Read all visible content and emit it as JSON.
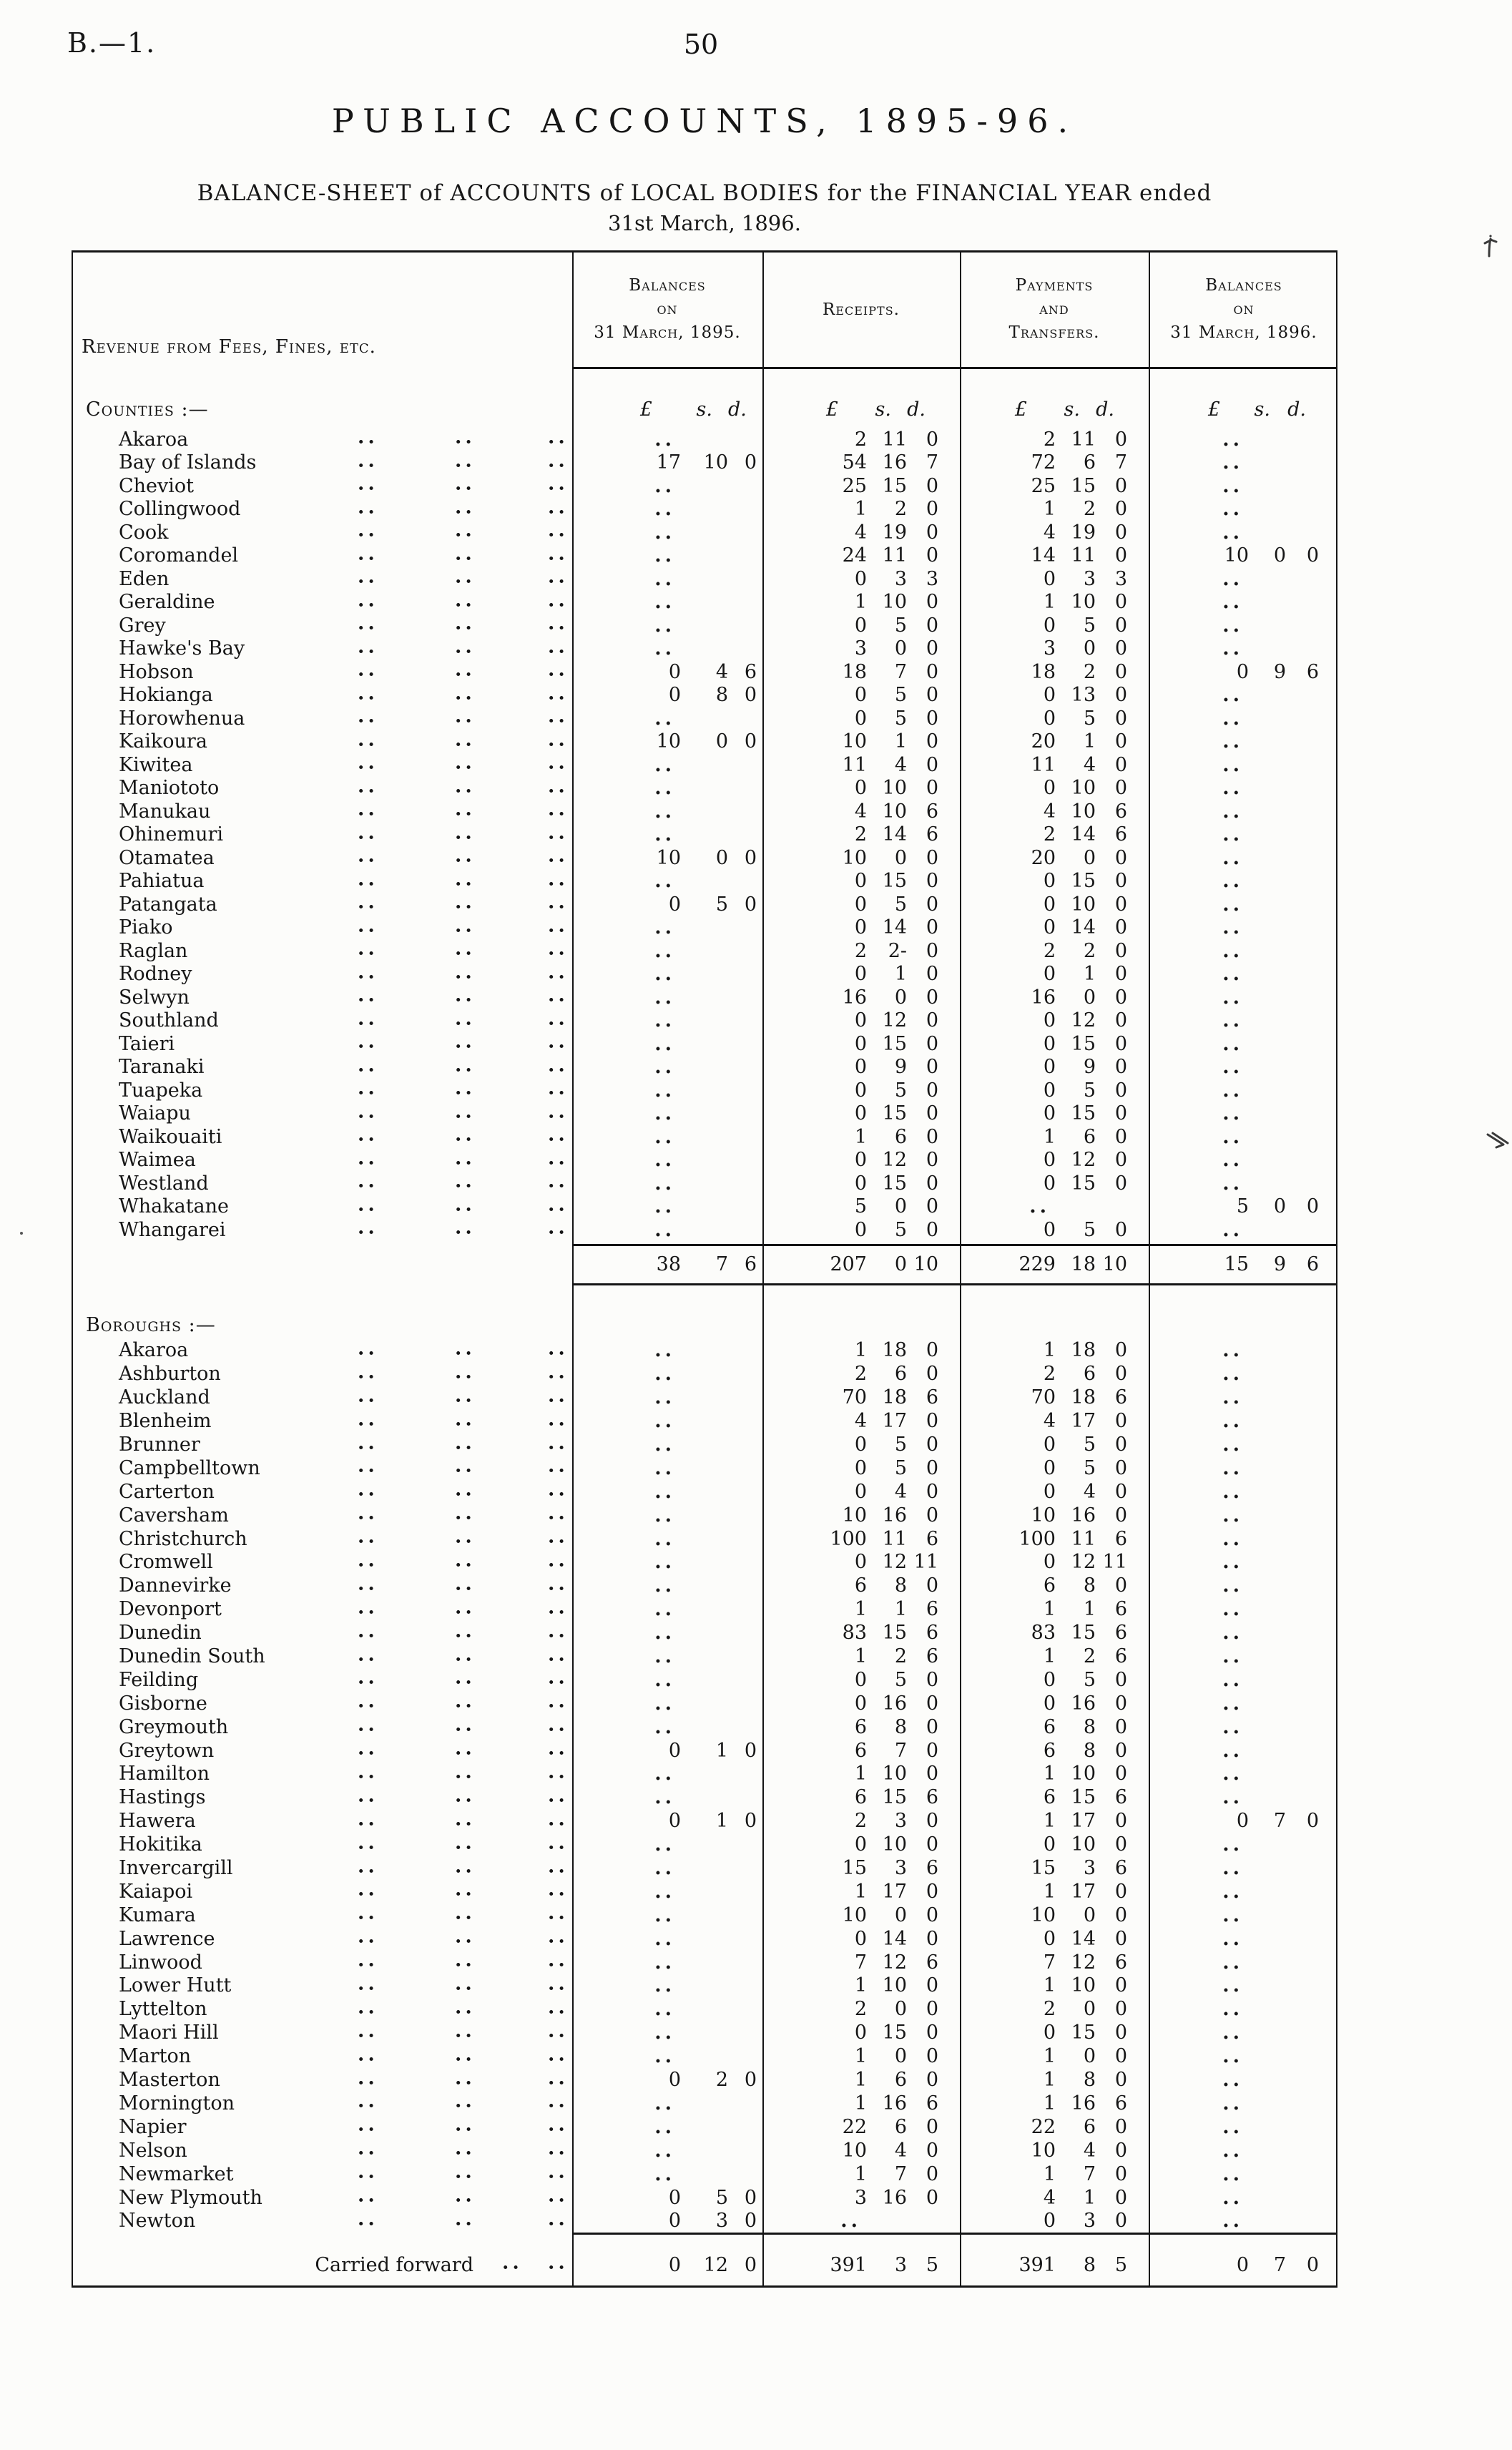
{
  "page": {
    "doc_ref": "B.—1.",
    "page_number": "50",
    "title": "PUBLIC ACCOUNTS, 1895-96.",
    "subtitle": "BALANCE-SHEET of ACCOUNTS of LOCAL BODIES for the FINANCIAL YEAR ended",
    "subtitle2": "31st March, 1896."
  },
  "table": {
    "stub_header": "Revenue from Fees, Fines, etc.",
    "col_headers": [
      {
        "name": "balances-1895",
        "lines": [
          "Balances",
          "on",
          "31 March, 1895."
        ]
      },
      {
        "name": "receipts",
        "lines": [
          "Receipts."
        ]
      },
      {
        "name": "payments-transfers",
        "lines": [
          "Payments",
          "and",
          "Transfers."
        ]
      },
      {
        "name": "balances-1896",
        "lines": [
          "Balances",
          "on",
          "31 March, 1896."
        ]
      }
    ],
    "currency_units": {
      "pounds": "£",
      "shillings": "s.",
      "pence": "d."
    },
    "empty_marker": "..",
    "row_format": [
      "name",
      "balances_1895",
      "receipts",
      "payments_transfers",
      "balances_1896"
    ],
    "sections": [
      {
        "label": "Counties :—",
        "rows": [
          [
            "Akaroa",
            "",
            "2 11 0",
            "2 11 0",
            ""
          ],
          [
            "Bay of Islands",
            "17 10 0",
            "54 16 7",
            "72 6 7",
            ""
          ],
          [
            "Cheviot",
            "",
            "25 15 0",
            "25 15 0",
            ""
          ],
          [
            "Collingwood",
            "",
            "1 2 0",
            "1 2 0",
            ""
          ],
          [
            "Cook",
            "",
            "4 19 0",
            "4 19 0",
            ""
          ],
          [
            "Coromandel",
            "",
            "24 11 0",
            "14 11 0",
            "10 0 0"
          ],
          [
            "Eden",
            "",
            "0 3 3",
            "0 3 3",
            ""
          ],
          [
            "Geraldine",
            "",
            "1 10 0",
            "1 10 0",
            ""
          ],
          [
            "Grey",
            "",
            "0 5 0",
            "0 5 0",
            ""
          ],
          [
            "Hawke's Bay",
            "",
            "3 0 0",
            "3 0 0",
            ""
          ],
          [
            "Hobson",
            "0 4 6",
            "18 7 0",
            "18 2 0",
            "0 9 6"
          ],
          [
            "Hokianga",
            "0 8 0",
            "0 5 0",
            "0 13 0",
            ""
          ],
          [
            "Horowhenua",
            "",
            "0 5 0",
            "0 5 0",
            ""
          ],
          [
            "Kaikoura",
            "10 0 0",
            "10 1 0",
            "20 1 0",
            ""
          ],
          [
            "Kiwitea",
            "",
            "11 4 0",
            "11 4 0",
            ""
          ],
          [
            "Maniototo",
            "",
            "0 10 0",
            "0 10 0",
            ""
          ],
          [
            "Manukau",
            "",
            "4 10 6",
            "4 10 6",
            ""
          ],
          [
            "Ohinemuri",
            "",
            "2 14 6",
            "2 14 6",
            ""
          ],
          [
            "Otamatea",
            "10 0 0",
            "10 0 0",
            "20 0 0",
            ""
          ],
          [
            "Pahiatua",
            "",
            "0 15 0",
            "0 15 0",
            ""
          ],
          [
            "Patangata",
            "0 5 0",
            "0 5 0",
            "0 10 0",
            ""
          ],
          [
            "Piako",
            "",
            "0 14 0",
            "0 14 0",
            ""
          ],
          [
            "Raglan",
            "",
            "2 2- 0",
            "2 2 0",
            ""
          ],
          [
            "Rodney",
            "",
            "0 1 0",
            "0 1 0",
            ""
          ],
          [
            "Selwyn",
            "",
            "16 0 0",
            "16 0 0",
            ""
          ],
          [
            "Southland",
            "",
            "0 12 0",
            "0 12 0",
            ""
          ],
          [
            "Taieri",
            "",
            "0 15 0",
            "0 15 0",
            ""
          ],
          [
            "Taranaki",
            "",
            "0 9 0",
            "0 9 0",
            ""
          ],
          [
            "Tuapeka",
            "",
            "0 5 0",
            "0 5 0",
            ""
          ],
          [
            "Waiapu",
            "",
            "0 15 0",
            "0 15 0",
            ""
          ],
          [
            "Waikouaiti",
            "",
            "1 6 0",
            "1 6 0",
            ""
          ],
          [
            "Waimea",
            "",
            "0 12 0",
            "0 12 0",
            ""
          ],
          [
            "Westland",
            "",
            "0 15 0",
            "0 15 0",
            ""
          ],
          [
            "Whakatane",
            "",
            "5 0 0",
            "",
            "5 0 0"
          ],
          [
            "Whangarei",
            "",
            "0 5 0",
            "0 5 0",
            ""
          ]
        ],
        "totals": [
          "38 7 6",
          "207 0 10",
          "229 18 10",
          "15 9 6"
        ]
      },
      {
        "label": "Boroughs :—",
        "rows": [
          [
            "Akaroa",
            "",
            "1 18 0",
            "1 18 0",
            ""
          ],
          [
            "Ashburton",
            "",
            "2 6 0",
            "2 6 0",
            ""
          ],
          [
            "Auckland",
            "",
            "70 18 6",
            "70 18 6",
            ""
          ],
          [
            "Blenheim",
            "",
            "4 17 0",
            "4 17 0",
            ""
          ],
          [
            "Brunner",
            "",
            "0 5 0",
            "0 5 0",
            ""
          ],
          [
            "Campbelltown",
            "",
            "0 5 0",
            "0 5 0",
            ""
          ],
          [
            "Carterton",
            "",
            "0 4 0",
            "0 4 0",
            ""
          ],
          [
            "Caversham",
            "",
            "10 16 0",
            "10 16 0",
            ""
          ],
          [
            "Christchurch",
            "",
            "100 11 6",
            "100 11 6",
            ""
          ],
          [
            "Cromwell",
            "",
            "0 12 11",
            "0 12 11",
            ""
          ],
          [
            "Dannevirke",
            "",
            "6 8 0",
            "6 8 0",
            ""
          ],
          [
            "Devonport",
            "",
            "1 1 6",
            "1 1 6",
            ""
          ],
          [
            "Dunedin",
            "",
            "83 15 6",
            "83 15 6",
            ""
          ],
          [
            "Dunedin South",
            "",
            "1 2 6",
            "1 2 6",
            ""
          ],
          [
            "Feilding",
            "",
            "0 5 0",
            "0 5 0",
            ""
          ],
          [
            "Gisborne",
            "",
            "0 16 0",
            "0 16 0",
            ""
          ],
          [
            "Greymouth",
            "",
            "6 8 0",
            "6 8 0",
            ""
          ],
          [
            "Greytown",
            "0 1 0",
            "6 7 0",
            "6 8 0",
            ""
          ],
          [
            "Hamilton",
            "",
            "1 10 0",
            "1 10 0",
            ""
          ],
          [
            "Hastings",
            "",
            "6 15 6",
            "6 15 6",
            ""
          ],
          [
            "Hawera",
            "0 1 0",
            "2 3 0",
            "1 17 0",
            "0 7 0"
          ],
          [
            "Hokitika",
            "",
            "0 10 0",
            "0 10 0",
            ""
          ],
          [
            "Invercargill",
            "",
            "15 3 6",
            "15 3 6",
            ""
          ],
          [
            "Kaiapoi",
            "",
            "1 17 0",
            "1 17 0",
            ""
          ],
          [
            "Kumara",
            "",
            "10 0 0",
            "10 0 0",
            ""
          ],
          [
            "Lawrence",
            "",
            "0 14 0",
            "0 14 0",
            ""
          ],
          [
            "Linwood",
            "",
            "7 12 6",
            "7 12 6",
            ""
          ],
          [
            "Lower Hutt",
            "",
            "1 10 0",
            "1 10 0",
            ""
          ],
          [
            "Lyttelton",
            "",
            "2 0 0",
            "2 0 0",
            ""
          ],
          [
            "Maori Hill",
            "",
            "0 15 0",
            "0 15 0",
            ""
          ],
          [
            "Marton",
            "",
            "1 0 0",
            "1 0 0",
            ""
          ],
          [
            "Masterton",
            "0 2 0",
            "1 6 0",
            "1 8 0",
            ""
          ],
          [
            "Mornington",
            "",
            "1 16 6",
            "1 16 6",
            ""
          ],
          [
            "Napier",
            "",
            "22 6 0",
            "22 6 0",
            ""
          ],
          [
            "Nelson",
            "",
            "10 4 0",
            "10 4 0",
            ""
          ],
          [
            "Newmarket",
            "",
            "1 7 0",
            "1 7 0",
            ""
          ],
          [
            "New Plymouth",
            "0 5 0",
            "3 16 0",
            "4 1 0",
            ""
          ],
          [
            "Newton",
            "0 3 0",
            "",
            "0 3 0",
            ""
          ]
        ],
        "totals": null
      }
    ],
    "footer": {
      "label": "Carried forward",
      "values": [
        "0 12 0",
        "391 3 5",
        "391 8 5",
        "0 7 0"
      ]
    }
  }
}
